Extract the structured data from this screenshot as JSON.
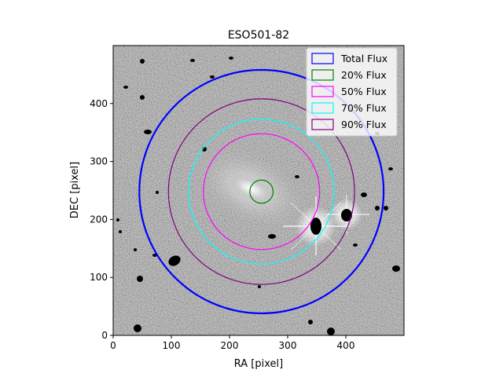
{
  "chart_data": {
    "type": "scatter",
    "title": "ESO501-82",
    "xlabel": "RA [pixel]",
    "ylabel": "DEC [pixel]",
    "xlim": [
      0,
      500
    ],
    "ylim": [
      0,
      500
    ],
    "xticks": [
      0,
      100,
      200,
      300,
      400
    ],
    "yticks": [
      0,
      100,
      200,
      300,
      400
    ],
    "grid": false,
    "legend_position": "top-right",
    "background": "grayscale sky image with galaxy, bright foreground stars and black masked regions",
    "center": {
      "x": 255,
      "y": 248
    },
    "apertures": [
      {
        "name": "Total Flux",
        "color": "#0000ff",
        "radius": 210
      },
      {
        "name": "20% Flux",
        "color": "#008000",
        "radius": 20
      },
      {
        "name": "50% Flux",
        "color": "#ff00ff",
        "radius": 100
      },
      {
        "name": "70% Flux",
        "color": "#00ffff",
        "radius": 125
      },
      {
        "name": "90% Flux",
        "color": "#800080",
        "radius": 160
      }
    ]
  }
}
